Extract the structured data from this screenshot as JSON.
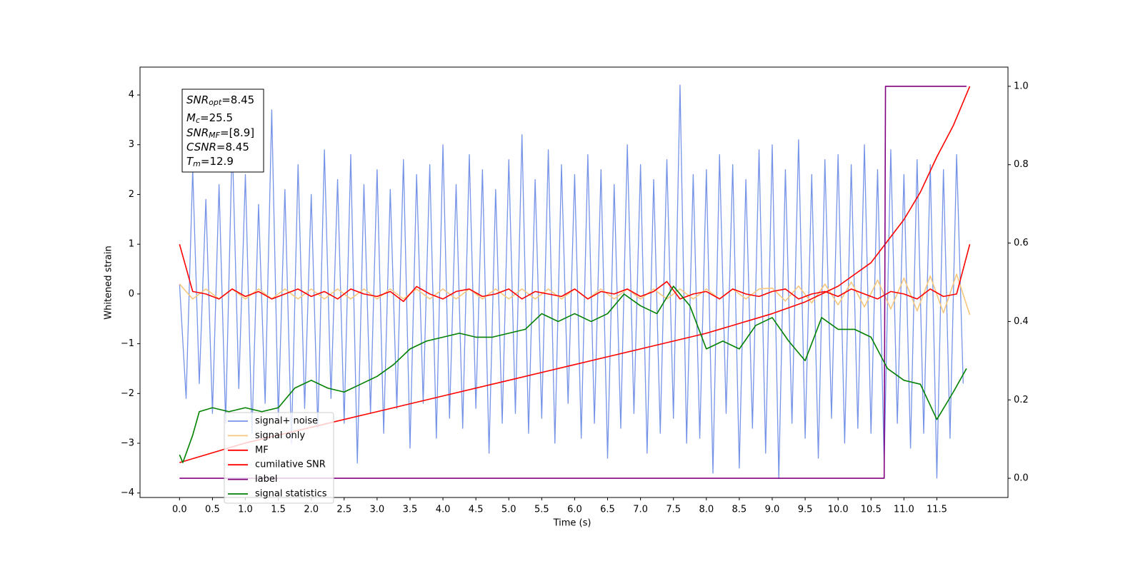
{
  "chart_data": {
    "type": "line",
    "xlabel": "Time (s)",
    "ylabel": "Whitened strain",
    "xlim": [
      -0.6,
      12.58
    ],
    "ylim": [
      -4.09,
      4.56
    ],
    "y2lim": [
      -0.049,
      1.049
    ],
    "xticks": [
      {
        "value": 0,
        "label": "0.0"
      },
      {
        "value": 0.5,
        "label": "0.5"
      },
      {
        "value": 1,
        "label": "1.0"
      },
      {
        "value": 1.5,
        "label": "1.5"
      },
      {
        "value": 2,
        "label": "2.0"
      },
      {
        "value": 2.5,
        "label": "2.5"
      },
      {
        "value": 3,
        "label": "3.0"
      },
      {
        "value": 3.5,
        "label": "3.5"
      },
      {
        "value": 4,
        "label": "4.0"
      },
      {
        "value": 4.5,
        "label": "4.5"
      },
      {
        "value": 5,
        "label": "5.0"
      },
      {
        "value": 5.5,
        "label": "5.5"
      },
      {
        "value": 6,
        "label": "6.0"
      },
      {
        "value": 6.5,
        "label": "6.5"
      },
      {
        "value": 7,
        "label": "7.0"
      },
      {
        "value": 7.5,
        "label": "7.5"
      },
      {
        "value": 8,
        "label": "8.0"
      },
      {
        "value": 8.5,
        "label": "8.5"
      },
      {
        "value": 9,
        "label": "9.0"
      },
      {
        "value": 9.5,
        "label": "9.5"
      },
      {
        "value": 10,
        "label": "10.0"
      },
      {
        "value": 10.5,
        "label": "10.5"
      },
      {
        "value": 11,
        "label": "11.0"
      },
      {
        "value": 11.5,
        "label": "11.5"
      }
    ],
    "yticks": [
      -4,
      -3,
      -2,
      -1,
      0,
      1,
      2,
      3,
      4
    ],
    "y2ticks": [
      {
        "value": 0,
        "label": "0.0"
      },
      {
        "value": 0.2,
        "label": "0.2"
      },
      {
        "value": 0.4,
        "label": "0.4"
      },
      {
        "value": 0.6,
        "label": "0.6"
      },
      {
        "value": 0.8,
        "label": "0.8"
      },
      {
        "value": 1,
        "label": "1.0"
      }
    ],
    "legend": "lower left",
    "annotation": [
      {
        "symbol": "SNR",
        "subscript": "opt",
        "text": "=8.45"
      },
      {
        "symbol": "M",
        "subscript": "c",
        "text": "=25.5"
      },
      {
        "symbol": "SNR",
        "subscript": "MF",
        "text": "=[8.9]"
      },
      {
        "symbol": "CSNR",
        "text": "=8.45"
      },
      {
        "symbol": "T",
        "subscript": "m",
        "text": "=12.9"
      }
    ],
    "series": [
      {
        "name": "signal+ noise",
        "color": "#7593e7",
        "x": [
          0,
          0.1,
          0.2,
          0.3,
          0.4,
          0.5,
          0.6,
          0.7,
          0.8,
          0.9,
          1,
          1.1,
          1.2,
          1.3,
          1.4,
          1.5,
          1.6,
          1.7,
          1.8,
          1.9,
          2,
          2.1,
          2.2,
          2.3,
          2.4,
          2.5,
          2.6,
          2.7,
          2.8,
          2.9,
          3,
          3.1,
          3.2,
          3.3,
          3.4,
          3.5,
          3.6,
          3.7,
          3.8,
          3.9,
          4,
          4.1,
          4.2,
          4.3,
          4.4,
          4.5,
          4.6,
          4.7,
          4.8,
          4.9,
          5,
          5.1,
          5.2,
          5.3,
          5.4,
          5.5,
          5.6,
          5.7,
          5.8,
          5.9,
          6,
          6.1,
          6.2,
          6.3,
          6.4,
          6.5,
          6.6,
          6.7,
          6.8,
          6.9,
          7,
          7.1,
          7.2,
          7.3,
          7.4,
          7.5,
          7.6,
          7.7,
          7.8,
          7.9,
          8,
          8.1,
          8.2,
          8.3,
          8.4,
          8.5,
          8.6,
          8.7,
          8.8,
          8.9,
          9,
          9.1,
          9.2,
          9.3,
          9.4,
          9.5,
          9.6,
          9.7,
          9.8,
          9.9,
          10,
          10.1,
          10.2,
          10.3,
          10.4,
          10.5,
          10.6,
          10.7,
          10.8,
          10.9,
          11,
          11.1,
          11.2,
          11.3,
          11.4,
          11.5,
          11.6,
          11.7,
          11.8,
          11.9
        ],
        "values": [
          0.2,
          -2.1,
          2.5,
          -1.8,
          1.9,
          -2.4,
          2.2,
          -2.6,
          3.1,
          -1.9,
          2.4,
          -2.8,
          1.8,
          -2.2,
          3.7,
          -2.5,
          2.1,
          -3.0,
          2.6,
          -2.3,
          2.0,
          -2.7,
          2.9,
          -2.1,
          2.3,
          -2.6,
          2.8,
          -3.4,
          2.2,
          -2.4,
          2.5,
          -2.8,
          2.1,
          -2.3,
          2.7,
          -3.1,
          2.4,
          -2.2,
          2.6,
          -2.9,
          3.0,
          -2.5,
          2.2,
          -2.7,
          2.8,
          -2.3,
          2.5,
          -3.2,
          2.1,
          -2.6,
          2.7,
          -2.4,
          3.2,
          -2.8,
          2.3,
          -2.5,
          2.9,
          -3.0,
          2.6,
          -2.2,
          2.4,
          -2.9,
          2.8,
          -2.6,
          2.5,
          -3.3,
          2.2,
          -2.7,
          3.0,
          -2.4,
          2.6,
          -3.2,
          2.3,
          -2.8,
          2.7,
          -2.5,
          4.2,
          -3.0,
          2.4,
          -2.9,
          2.5,
          -3.6,
          2.8,
          -2.4,
          2.6,
          -3.5,
          2.3,
          -2.7,
          2.9,
          -3.2,
          3.0,
          -3.7,
          2.5,
          -2.6,
          3.1,
          -2.9,
          2.4,
          -3.3,
          2.7,
          -2.5,
          2.8,
          -3.0,
          2.6,
          -2.7,
          3.0,
          -2.8,
          2.5,
          -3.4,
          2.9,
          -2.6,
          2.4,
          -3.1,
          2.7,
          -2.8,
          2.6,
          -3.7,
          2.5,
          -2.9,
          2.8,
          -1.8
        ]
      },
      {
        "name": "signal only",
        "color": "#f7c77e",
        "x": [
          0,
          0.2,
          0.4,
          0.6,
          0.8,
          1,
          1.2,
          1.4,
          1.6,
          1.8,
          2,
          2.2,
          2.4,
          2.6,
          2.8,
          3,
          3.2,
          3.4,
          3.6,
          3.8,
          4,
          4.2,
          4.4,
          4.6,
          4.8,
          5,
          5.2,
          5.4,
          5.6,
          5.8,
          6,
          6.2,
          6.4,
          6.6,
          6.8,
          7,
          7.2,
          7.4,
          7.6,
          7.8,
          8,
          8.2,
          8.4,
          8.6,
          8.8,
          9,
          9.2,
          9.4,
          9.6,
          9.8,
          10,
          10.2,
          10.4,
          10.6,
          10.8,
          11,
          11.2,
          11.4,
          11.6,
          11.8,
          12
        ],
        "values": [
          0.2,
          -0.1,
          0.1,
          -0.1,
          0.1,
          -0.1,
          0.1,
          -0.1,
          0.1,
          -0.1,
          0.1,
          -0.1,
          0.1,
          -0.1,
          0.1,
          -0.1,
          0.1,
          -0.1,
          0.1,
          -0.1,
          0.1,
          -0.1,
          0.1,
          -0.1,
          0.1,
          -0.1,
          0.1,
          -0.1,
          0.1,
          -0.1,
          0.1,
          -0.1,
          0.1,
          -0.1,
          0.1,
          -0.1,
          0.1,
          -0.1,
          0.1,
          -0.1,
          0.1,
          -0.1,
          0.1,
          -0.1,
          0.1,
          0.12,
          -0.14,
          0.16,
          -0.18,
          0.2,
          -0.22,
          0.24,
          -0.26,
          0.28,
          -0.3,
          0.32,
          -0.34,
          0.36,
          -0.38,
          0.4,
          -0.42
        ]
      },
      {
        "name": "MF",
        "color": "#ff0000",
        "x": [
          0,
          0.2,
          0.4,
          0.6,
          0.8,
          1,
          1.2,
          1.4,
          1.6,
          1.8,
          2,
          2.2,
          2.4,
          2.6,
          2.8,
          3,
          3.2,
          3.4,
          3.6,
          3.8,
          4,
          4.2,
          4.4,
          4.6,
          4.8,
          5,
          5.2,
          5.4,
          5.6,
          5.8,
          6,
          6.2,
          6.4,
          6.6,
          6.8,
          7,
          7.2,
          7.4,
          7.6,
          7.8,
          8,
          8.2,
          8.4,
          8.6,
          8.8,
          9,
          9.2,
          9.4,
          9.6,
          9.8,
          10,
          10.2,
          10.4,
          10.6,
          10.8,
          11,
          11.2,
          11.4,
          11.6,
          11.8,
          12
        ],
        "values": [
          1.0,
          0.05,
          0.0,
          -0.1,
          0.1,
          -0.05,
          0.05,
          -0.1,
          0.0,
          0.1,
          -0.05,
          0.05,
          -0.1,
          0.1,
          0.0,
          -0.05,
          0.05,
          -0.15,
          0.15,
          0.0,
          -0.1,
          0.05,
          0.1,
          -0.05,
          0.0,
          0.1,
          -0.1,
          0.05,
          0.0,
          -0.05,
          0.1,
          -0.1,
          0.05,
          0.0,
          0.1,
          -0.05,
          0.05,
          0.25,
          -0.1,
          0.0,
          0.05,
          -0.1,
          0.1,
          0.0,
          -0.05,
          0.05,
          0.1,
          -0.1,
          0.0,
          0.05,
          -0.05,
          0.1,
          0.0,
          -0.1,
          0.05,
          0.0,
          -0.1,
          0.1,
          -0.05,
          0.0,
          1.0
        ]
      },
      {
        "name": "cumilative SNR",
        "color": "#ff0000",
        "axis": "y2",
        "x": [
          0,
          1,
          2,
          3,
          4,
          5,
          6,
          7,
          8,
          9,
          9.5,
          10,
          10.5,
          11,
          11.25,
          11.5,
          11.75,
          12
        ],
        "values": [
          0.04,
          0.09,
          0.13,
          0.17,
          0.21,
          0.25,
          0.29,
          0.33,
          0.37,
          0.42,
          0.45,
          0.49,
          0.55,
          0.66,
          0.73,
          0.82,
          0.9,
          1.0
        ]
      },
      {
        "name": "label",
        "color": "#800080",
        "axis": "y2",
        "x": [
          0,
          10.7,
          10.72,
          11.95
        ],
        "values": [
          0,
          0,
          1,
          1
        ]
      },
      {
        "name": "signal statistics",
        "color": "#008000",
        "axis": "y2",
        "x": [
          0,
          0.05,
          0.2,
          0.3,
          0.5,
          0.75,
          1,
          1.25,
          1.5,
          1.75,
          2,
          2.25,
          2.5,
          2.75,
          3,
          3.25,
          3.5,
          3.75,
          4,
          4.25,
          4.5,
          4.75,
          5,
          5.25,
          5.5,
          5.75,
          6,
          6.25,
          6.5,
          6.75,
          7,
          7.25,
          7.5,
          7.75,
          8,
          8.25,
          8.5,
          8.75,
          9,
          9.25,
          9.5,
          9.75,
          10,
          10.25,
          10.5,
          10.75,
          11,
          11.25,
          11.5,
          11.75,
          11.95
        ],
        "values": [
          0.06,
          0.04,
          0.11,
          0.17,
          0.18,
          0.17,
          0.18,
          0.17,
          0.18,
          0.23,
          0.25,
          0.23,
          0.22,
          0.24,
          0.26,
          0.29,
          0.33,
          0.35,
          0.36,
          0.37,
          0.36,
          0.36,
          0.37,
          0.38,
          0.42,
          0.4,
          0.42,
          0.4,
          0.42,
          0.47,
          0.44,
          0.42,
          0.49,
          0.44,
          0.33,
          0.35,
          0.33,
          0.39,
          0.41,
          0.35,
          0.3,
          0.41,
          0.38,
          0.38,
          0.36,
          0.28,
          0.25,
          0.24,
          0.15,
          0.22,
          0.28
        ]
      }
    ]
  }
}
